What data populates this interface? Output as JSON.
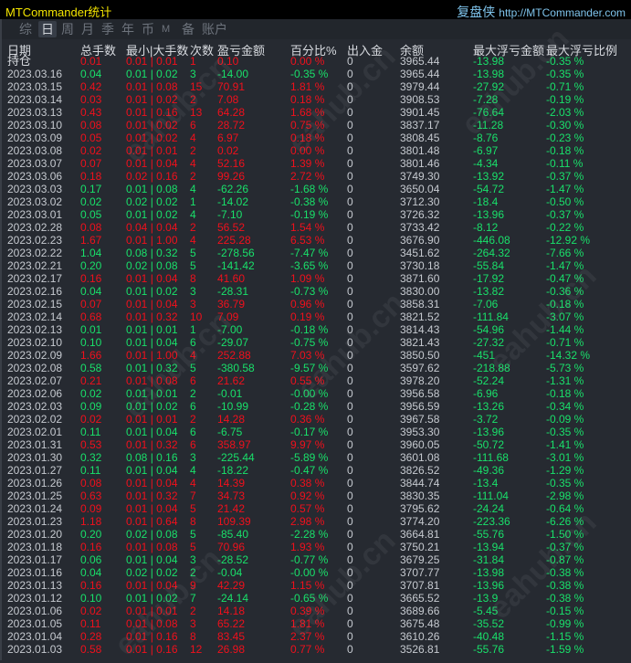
{
  "title": "MTCommander统计",
  "brand": {
    "cn": "复盘侠",
    "url": "http://MTCommander.com"
  },
  "tabs": [
    {
      "label": "综",
      "active": false
    },
    {
      "label": "日",
      "active": true
    },
    {
      "label": "周",
      "active": false
    },
    {
      "label": "月",
      "active": false
    },
    {
      "label": "季",
      "active": false
    },
    {
      "label": "年",
      "active": false
    },
    {
      "label": "币",
      "active": false
    },
    {
      "label": "M",
      "active": false
    },
    {
      "label": "备",
      "active": false
    },
    {
      "label": "账户",
      "active": false
    }
  ],
  "columns": [
    "日期",
    "总手数",
    "最小|大手数",
    "次数",
    "盈亏金额",
    "百分比%",
    "出入金",
    "余额",
    "最大浮亏金额",
    "最大浮亏比例"
  ],
  "colors": {
    "profit": "#f0101c",
    "loss": "#19e06a",
    "neutral": "#c6cad0",
    "title": "#f4e500"
  },
  "watermark": "eahub.cn",
  "rows": [
    [
      "持仓",
      "0.01",
      "0.01 | 0.01",
      "1",
      "0.10",
      "0.00 %",
      "0",
      "3965.44",
      "-13.98",
      "-0.35 %"
    ],
    [
      "2023.03.16",
      "0.04",
      "0.01 | 0.02",
      "3",
      "-14.00",
      "-0.35 %",
      "0",
      "3965.44",
      "-13.98",
      "-0.35 %"
    ],
    [
      "2023.03.15",
      "0.42",
      "0.01 | 0.08",
      "15",
      "70.91",
      "1.81 %",
      "0",
      "3979.44",
      "-27.92",
      "-0.71 %"
    ],
    [
      "2023.03.14",
      "0.03",
      "0.01 | 0.02",
      "2",
      "7.08",
      "0.18 %",
      "0",
      "3908.53",
      "-7.28",
      "-0.19 %"
    ],
    [
      "2023.03.13",
      "0.43",
      "0.01 | 0.16",
      "13",
      "64.28",
      "1.68 %",
      "0",
      "3901.45",
      "-76.64",
      "-2.03 %"
    ],
    [
      "2023.03.10",
      "0.08",
      "0.01 | 0.02",
      "6",
      "28.72",
      "0.75 %",
      "0",
      "3837.17",
      "-11.28",
      "-0.30 %"
    ],
    [
      "2023.03.09",
      "0.05",
      "0.01 | 0.02",
      "4",
      "6.97",
      "0.18 %",
      "0",
      "3808.45",
      "-8.76",
      "-0.23 %"
    ],
    [
      "2023.03.08",
      "0.02",
      "0.01 | 0.01",
      "2",
      "0.02",
      "0.00 %",
      "0",
      "3801.48",
      "-6.97",
      "-0.18 %"
    ],
    [
      "2023.03.07",
      "0.07",
      "0.01 | 0.04",
      "4",
      "52.16",
      "1.39 %",
      "0",
      "3801.46",
      "-4.34",
      "-0.11 %"
    ],
    [
      "2023.03.06",
      "0.18",
      "0.02 | 0.16",
      "2",
      "99.26",
      "2.72 %",
      "0",
      "3749.30",
      "-13.92",
      "-0.37 %"
    ],
    [
      "2023.03.03",
      "0.17",
      "0.01 | 0.08",
      "4",
      "-62.26",
      "-1.68 %",
      "0",
      "3650.04",
      "-54.72",
      "-1.47 %"
    ],
    [
      "2023.03.02",
      "0.02",
      "0.02 | 0.02",
      "1",
      "-14.02",
      "-0.38 %",
      "0",
      "3712.30",
      "-18.4",
      "-0.50 %"
    ],
    [
      "2023.03.01",
      "0.05",
      "0.01 | 0.02",
      "4",
      "-7.10",
      "-0.19 %",
      "0",
      "3726.32",
      "-13.96",
      "-0.37 %"
    ],
    [
      "2023.02.28",
      "0.08",
      "0.04 | 0.04",
      "2",
      "56.52",
      "1.54 %",
      "0",
      "3733.42",
      "-8.12",
      "-0.22 %"
    ],
    [
      "2023.02.23",
      "1.67",
      "0.01 | 1.00",
      "4",
      "225.28",
      "6.53 %",
      "0",
      "3676.90",
      "-446.08",
      "-12.92 %"
    ],
    [
      "2023.02.22",
      "1.04",
      "0.08 | 0.32",
      "5",
      "-278.56",
      "-7.47 %",
      "0",
      "3451.62",
      "-264.32",
      "-7.66 %"
    ],
    [
      "2023.02.21",
      "0.20",
      "0.02 | 0.08",
      "5",
      "-141.42",
      "-3.65 %",
      "0",
      "3730.18",
      "-55.84",
      "-1.47 %"
    ],
    [
      "2023.02.17",
      "0.16",
      "0.01 | 0.04",
      "8",
      "41.60",
      "1.09 %",
      "0",
      "3871.60",
      "-17.92",
      "-0.47 %"
    ],
    [
      "2023.02.16",
      "0.04",
      "0.01 | 0.02",
      "3",
      "-28.31",
      "-0.73 %",
      "0",
      "3830.00",
      "-13.82",
      "-0.36 %"
    ],
    [
      "2023.02.15",
      "0.07",
      "0.01 | 0.04",
      "3",
      "36.79",
      "0.96 %",
      "0",
      "3858.31",
      "-7.06",
      "-0.18 %"
    ],
    [
      "2023.02.14",
      "0.68",
      "0.01 | 0.32",
      "10",
      "7.09",
      "0.19 %",
      "0",
      "3821.52",
      "-111.84",
      "-3.07 %"
    ],
    [
      "2023.02.13",
      "0.01",
      "0.01 | 0.01",
      "1",
      "-7.00",
      "-0.18 %",
      "0",
      "3814.43",
      "-54.96",
      "-1.44 %"
    ],
    [
      "2023.02.10",
      "0.10",
      "0.01 | 0.04",
      "6",
      "-29.07",
      "-0.75 %",
      "0",
      "3821.43",
      "-27.32",
      "-0.71 %"
    ],
    [
      "2023.02.09",
      "1.66",
      "0.01 | 1.00",
      "4",
      "252.88",
      "7.03 %",
      "0",
      "3850.50",
      "-451",
      "-14.32 %"
    ],
    [
      "2023.02.08",
      "0.58",
      "0.01 | 0.32",
      "5",
      "-380.58",
      "-9.57 %",
      "0",
      "3597.62",
      "-218.88",
      "-5.73 %"
    ],
    [
      "2023.02.07",
      "0.21",
      "0.01 | 0.08",
      "6",
      "21.62",
      "0.55 %",
      "0",
      "3978.20",
      "-52.24",
      "-1.31 %"
    ],
    [
      "2023.02.06",
      "0.02",
      "0.01 | 0.01",
      "2",
      "-0.01",
      "-0.00 %",
      "0",
      "3956.58",
      "-6.96",
      "-0.18 %"
    ],
    [
      "2023.02.03",
      "0.09",
      "0.01 | 0.02",
      "6",
      "-10.99",
      "-0.28 %",
      "0",
      "3956.59",
      "-13.26",
      "-0.34 %"
    ],
    [
      "2023.02.02",
      "0.02",
      "0.01 | 0.01",
      "2",
      "14.28",
      "0.36 %",
      "0",
      "3967.58",
      "-3.72",
      "-0.09 %"
    ],
    [
      "2023.02.01",
      "0.11",
      "0.01 | 0.04",
      "6",
      "-6.75",
      "-0.17 %",
      "0",
      "3953.30",
      "-13.96",
      "-0.35 %"
    ],
    [
      "2023.01.31",
      "0.53",
      "0.01 | 0.32",
      "6",
      "358.97",
      "9.97 %",
      "0",
      "3960.05",
      "-50.72",
      "-1.41 %"
    ],
    [
      "2023.01.30",
      "0.32",
      "0.08 | 0.16",
      "3",
      "-225.44",
      "-5.89 %",
      "0",
      "3601.08",
      "-111.68",
      "-3.01 %"
    ],
    [
      "2023.01.27",
      "0.11",
      "0.01 | 0.04",
      "4",
      "-18.22",
      "-0.47 %",
      "0",
      "3826.52",
      "-49.36",
      "-1.29 %"
    ],
    [
      "2023.01.26",
      "0.08",
      "0.01 | 0.04",
      "4",
      "14.39",
      "0.38 %",
      "0",
      "3844.74",
      "-13.4",
      "-0.35 %"
    ],
    [
      "2023.01.25",
      "0.63",
      "0.01 | 0.32",
      "7",
      "34.73",
      "0.92 %",
      "0",
      "3830.35",
      "-111.04",
      "-2.98 %"
    ],
    [
      "2023.01.24",
      "0.09",
      "0.01 | 0.04",
      "5",
      "21.42",
      "0.57 %",
      "0",
      "3795.62",
      "-24.24",
      "-0.64 %"
    ],
    [
      "2023.01.23",
      "1.18",
      "0.01 | 0.64",
      "8",
      "109.39",
      "2.98 %",
      "0",
      "3774.20",
      "-223.36",
      "-6.26 %"
    ],
    [
      "2023.01.20",
      "0.20",
      "0.02 | 0.08",
      "5",
      "-85.40",
      "-2.28 %",
      "0",
      "3664.81",
      "-55.76",
      "-1.50 %"
    ],
    [
      "2023.01.18",
      "0.16",
      "0.01 | 0.08",
      "5",
      "70.96",
      "1.93 %",
      "0",
      "3750.21",
      "-13.94",
      "-0.37 %"
    ],
    [
      "2023.01.17",
      "0.06",
      "0.01 | 0.04",
      "3",
      "-28.52",
      "-0.77 %",
      "0",
      "3679.25",
      "-31.84",
      "-0.87 %"
    ],
    [
      "2023.01.16",
      "0.04",
      "0.02 | 0.02",
      "2",
      "-0.04",
      "-0.00 %",
      "0",
      "3707.77",
      "-13.98",
      "-0.38 %"
    ],
    [
      "2023.01.13",
      "0.16",
      "0.01 | 0.04",
      "9",
      "42.29",
      "1.15 %",
      "0",
      "3707.81",
      "-13.96",
      "-0.38 %"
    ],
    [
      "2023.01.12",
      "0.10",
      "0.01 | 0.02",
      "7",
      "-24.14",
      "-0.65 %",
      "0",
      "3665.52",
      "-13.9",
      "-0.38 %"
    ],
    [
      "2023.01.06",
      "0.02",
      "0.01 | 0.01",
      "2",
      "14.18",
      "0.39 %",
      "0",
      "3689.66",
      "-5.45",
      "-0.15 %"
    ],
    [
      "2023.01.05",
      "0.11",
      "0.01 | 0.08",
      "3",
      "65.22",
      "1.81 %",
      "0",
      "3675.48",
      "-35.52",
      "-0.99 %"
    ],
    [
      "2023.01.04",
      "0.28",
      "0.01 | 0.16",
      "8",
      "83.45",
      "2.37 %",
      "0",
      "3610.26",
      "-40.48",
      "-1.15 %"
    ],
    [
      "2023.01.03",
      "0.58",
      "0.01 | 0.16",
      "12",
      "26.98",
      "0.77 %",
      "0",
      "3526.81",
      "-55.76",
      "-1.59 %"
    ]
  ]
}
